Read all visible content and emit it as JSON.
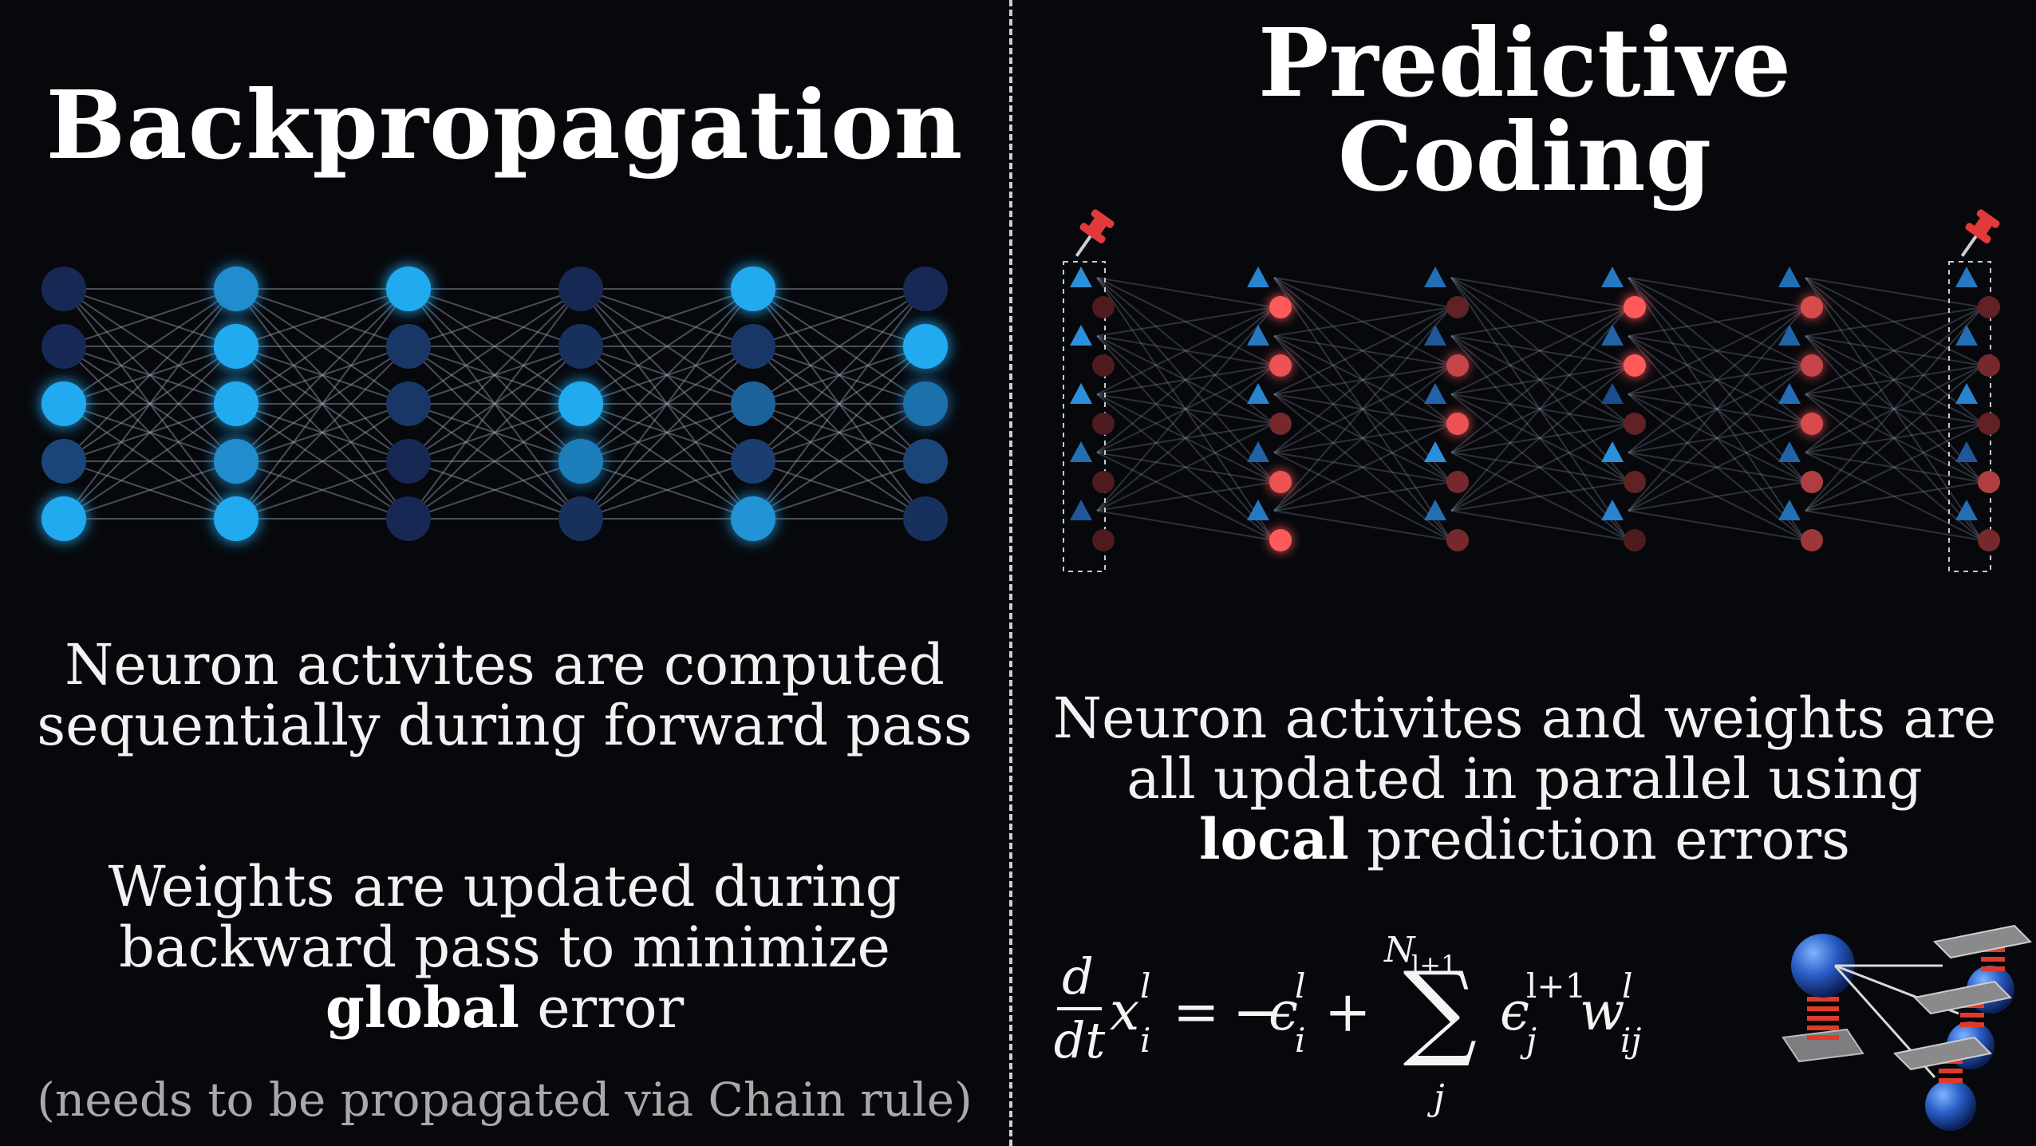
{
  "left": {
    "title": "Backpropagation",
    "description_line1": "Neuron activites are computed",
    "description_line2": "sequentially during forward pass",
    "weights_line1": "Weights are updated during",
    "weights_line2": "backward pass to minimize",
    "weights_bold": "global",
    "weights_rest": " error",
    "note": "(needs to be propagated via Chain rule)",
    "network": {
      "layers": 6,
      "neurons_per_layer": 5,
      "activations": [
        [
          0.1,
          0.1,
          1.0,
          0.3,
          1.0
        ],
        [
          0.8,
          1.0,
          1.0,
          0.8,
          1.0
        ],
        [
          1.0,
          0.2,
          0.2,
          0.1,
          0.1
        ],
        [
          0.1,
          0.15,
          1.0,
          0.7,
          0.15
        ],
        [
          1.0,
          0.2,
          0.5,
          0.25,
          0.85
        ],
        [
          0.1,
          1.0,
          0.6,
          0.3,
          0.15
        ]
      ],
      "neuron_color": "#22aaf0",
      "dim_color": "#161a44",
      "edge_color": "#9aa3b5"
    }
  },
  "right": {
    "title_line1": "Predictive",
    "title_line2": "Coding",
    "description_line1": "Neuron activites and weights are",
    "description_line2": "all updated in parallel using",
    "description_bold": "local",
    "description_rest": " prediction errors",
    "equation": {
      "frac_num": "d",
      "frac_den": "dt",
      "x": "x",
      "x_sup": "l",
      "x_sub": "i",
      "equals": "=",
      "minus": "−",
      "eps": "ϵ",
      "eps1_sup": "l",
      "eps1_sub": "i",
      "plus": "+",
      "sum": "∑",
      "sum_top": "N",
      "sum_top_sub": "l+1",
      "sum_bottom": "j",
      "eps2_sup": "l+1",
      "eps2_sub": "j",
      "w": "w",
      "w_sup": "l",
      "w_sub": "ij"
    },
    "network": {
      "layers": 6,
      "triangles_per_layer": 5,
      "circles_per_layer": 5,
      "triangle_levels": [
        [
          0.9,
          0.9,
          0.9,
          0.6,
          0.4
        ],
        [
          0.8,
          0.7,
          0.8,
          0.5,
          0.7
        ],
        [
          0.6,
          0.4,
          0.5,
          0.9,
          0.6
        ],
        [
          0.7,
          0.5,
          0.3,
          0.9,
          0.8
        ],
        [
          0.6,
          0.5,
          0.6,
          0.5,
          0.6
        ],
        [
          0.7,
          0.6,
          0.8,
          0.4,
          0.6
        ]
      ],
      "error_levels": [
        [
          0.1,
          0.1,
          0.1,
          0.1,
          0.1
        ],
        [
          1.0,
          0.9,
          0.3,
          0.9,
          1.0
        ],
        [
          0.2,
          0.7,
          0.9,
          0.3,
          0.3
        ],
        [
          1.0,
          1.0,
          0.2,
          0.2,
          0.1
        ],
        [
          0.8,
          0.7,
          0.8,
          0.6,
          0.5
        ],
        [
          0.2,
          0.3,
          0.2,
          0.6,
          0.3
        ]
      ],
      "triangle_color": "#2d9be8",
      "error_color": "#ff5a5a",
      "edge_color": "#8a93a6",
      "pin_color": "#e23a3a"
    }
  }
}
